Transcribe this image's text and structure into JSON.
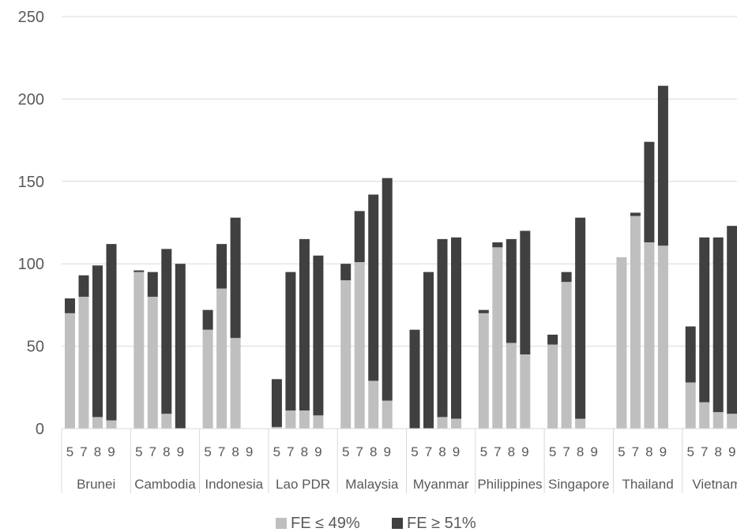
{
  "chart_data": {
    "type": "bar",
    "stacked": true,
    "y_ticks": [
      "0",
      "50",
      "100",
      "150",
      "200",
      "250"
    ],
    "ylim": [
      0,
      250
    ],
    "grid": true,
    "legend_position": "bottom",
    "groups": [
      {
        "name": "Brunei",
        "categories": [
          "5",
          "7",
          "8",
          "9"
        ],
        "light": [
          70,
          80,
          7,
          5
        ],
        "dark": [
          9,
          13,
          92,
          107
        ]
      },
      {
        "name": "Cambodia",
        "categories": [
          "5",
          "7",
          "8",
          "9"
        ],
        "light": [
          95,
          80,
          9,
          0
        ],
        "dark": [
          1,
          15,
          100,
          100
        ]
      },
      {
        "name": "Indonesia",
        "categories": [
          "5",
          "7",
          "8",
          "9"
        ],
        "light": [
          60,
          85,
          55,
          0
        ],
        "dark": [
          12,
          27,
          73,
          0
        ]
      },
      {
        "name": "Lao PDR",
        "categories": [
          "5",
          "7",
          "8",
          "9"
        ],
        "light": [
          1,
          11,
          11,
          8
        ],
        "dark": [
          29,
          84,
          104,
          97
        ]
      },
      {
        "name": "Malaysia",
        "categories": [
          "5",
          "7",
          "8",
          "9"
        ],
        "light": [
          90,
          101,
          29,
          17
        ],
        "dark": [
          10,
          31,
          113,
          135
        ]
      },
      {
        "name": "Myanmar",
        "categories": [
          "5",
          "7",
          "8",
          "9"
        ],
        "light": [
          0,
          0,
          7,
          6
        ],
        "dark": [
          60,
          95,
          108,
          110
        ]
      },
      {
        "name": "Philippines",
        "categories": [
          "5",
          "7",
          "8",
          "9"
        ],
        "light": [
          70,
          110,
          52,
          45
        ],
        "dark": [
          2,
          3,
          63,
          75
        ]
      },
      {
        "name": "Singapore",
        "categories": [
          "5",
          "7",
          "8",
          "9"
        ],
        "light": [
          51,
          89,
          6,
          0
        ],
        "dark": [
          6,
          6,
          122,
          0
        ]
      },
      {
        "name": "Thailand",
        "categories": [
          "5",
          "7",
          "8",
          "9"
        ],
        "light": [
          104,
          129,
          113,
          111
        ],
        "dark": [
          0,
          2,
          61,
          97
        ]
      },
      {
        "name": "Vietnam",
        "categories": [
          "5",
          "7",
          "8",
          "9"
        ],
        "light": [
          28,
          16,
          10,
          9
        ],
        "dark": [
          34,
          100,
          106,
          114
        ]
      }
    ],
    "series": [
      {
        "name": "FE ≤ 49%",
        "color": "#bfbfbf"
      },
      {
        "name": "FE ≥ 51%",
        "color": "#404040"
      }
    ]
  }
}
